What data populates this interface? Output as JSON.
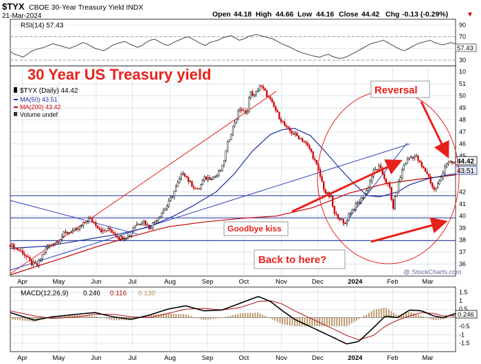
{
  "header": {
    "symbol": "$TYX",
    "description": "CBOE 30-Year Treasury Yield INDX",
    "date": "21-Mar-2024",
    "open_label": "Open",
    "open": "44.18",
    "high_label": "High",
    "high": "44.66",
    "low_label": "Low",
    "low": "44.16",
    "close_label": "Close",
    "close": "44.42",
    "chg_label": "Chg",
    "chg": "-0.13 (-0.29%)",
    "chg_arrow": "▼",
    "watermark": "@ StockCharts.com"
  },
  "colors": {
    "background": "#ffffff",
    "grid": "#c8d3e6",
    "price_up": "#000000",
    "price_down": "#cc0000",
    "ma50": "#1a2d9c",
    "ma200": "#cc0000",
    "annotation": "#e8201a",
    "trend_blue": "#3040c0"
  },
  "annotations": {
    "title": "30 Year US Treasury yield",
    "reversal": "Reversal",
    "goodbye": "Goodbye kiss",
    "back": "Back to here?"
  },
  "chart_data": [
    {
      "type": "line",
      "panel": "rsi",
      "title": "RSI(14) 57.43",
      "current_value_label": "57.43",
      "ylim": [
        20,
        100
      ],
      "ticks": [
        90,
        70,
        50,
        30,
        10
      ],
      "reference_lines": [
        70,
        30
      ],
      "values": [
        45,
        40,
        38,
        35,
        40,
        45,
        48,
        50,
        52,
        55,
        58,
        56,
        54,
        52,
        50,
        53,
        56,
        60,
        58,
        54,
        50,
        48,
        46,
        50,
        55,
        58,
        60,
        62,
        58,
        55,
        52,
        55,
        60,
        64,
        66,
        62,
        58,
        55,
        58,
        62,
        65,
        68,
        70,
        66,
        62,
        58,
        55,
        60,
        62,
        64,
        68,
        70,
        72,
        68,
        64,
        66,
        70,
        72,
        74,
        72,
        70,
        68,
        66,
        62,
        58,
        55,
        52,
        48,
        45,
        42,
        40,
        38,
        36,
        35,
        38,
        40,
        36,
        34,
        33,
        35,
        38,
        42,
        46,
        50,
        54,
        58,
        60,
        62,
        64,
        60,
        56,
        52,
        48,
        46,
        50,
        54,
        58,
        60,
        62,
        64,
        60,
        58,
        56,
        58,
        60,
        57.43
      ]
    },
    {
      "type": "line",
      "panel": "price",
      "legend": [
        "$TYX (Daily) 44.42",
        "MA(50) 43.51",
        "MA(200) 43.42",
        "Volume undef"
      ],
      "x_labels": [
        "Apr",
        "May",
        "Jun",
        "Jul",
        "Aug",
        "Sep",
        "Oct",
        "Nov",
        "Dec",
        "2024",
        "Feb",
        "Mar"
      ],
      "x_label_days": [
        0,
        30,
        61,
        91,
        122,
        153,
        183,
        214,
        244,
        275,
        306,
        335
      ],
      "ylim": [
        35,
        52.5
      ],
      "y_ticks": [
        36,
        37,
        38,
        39,
        40,
        41,
        42,
        43,
        44,
        45,
        46,
        47,
        48,
        49,
        50,
        51
      ],
      "last_close_label": "44.42",
      "ma50_label": "43.51",
      "series": [
        {
          "name": "$TYX (Daily)",
          "points": [
            [
              -10,
              37.6
            ],
            [
              0,
              37.0
            ],
            [
              8,
              36.0
            ],
            [
              12,
              35.9
            ],
            [
              20,
              37.4
            ],
            [
              28,
              37.8
            ],
            [
              35,
              38.6
            ],
            [
              45,
              38.8
            ],
            [
              55,
              39.8
            ],
            [
              60,
              39.4
            ],
            [
              66,
              38.7
            ],
            [
              72,
              38.9
            ],
            [
              80,
              38.2
            ],
            [
              88,
              38.3
            ],
            [
              92,
              39.2
            ],
            [
              100,
              39.6
            ],
            [
              105,
              39.0
            ],
            [
              112,
              39.9
            ],
            [
              120,
              40.9
            ],
            [
              128,
              42.6
            ],
            [
              133,
              43.7
            ],
            [
              138,
              42.8
            ],
            [
              145,
              42.1
            ],
            [
              150,
              43.1
            ],
            [
              160,
              43.3
            ],
            [
              165,
              44.0
            ],
            [
              170,
              46.2
            ],
            [
              175,
              47.7
            ],
            [
              180,
              49.0
            ],
            [
              185,
              48.4
            ],
            [
              188,
              50.3
            ],
            [
              192,
              50.0
            ],
            [
              196,
              50.9
            ],
            [
              200,
              50.4
            ],
            [
              205,
              49.6
            ],
            [
              212,
              48.3
            ],
            [
              218,
              47.3
            ],
            [
              225,
              46.8
            ],
            [
              232,
              46.3
            ],
            [
              238,
              45.5
            ],
            [
              244,
              44.0
            ],
            [
              250,
              42.0
            ],
            [
              255,
              41.5
            ],
            [
              258,
              40.1
            ],
            [
              262,
              39.9
            ],
            [
              266,
              39.2
            ],
            [
              270,
              40.2
            ],
            [
              275,
              40.8
            ],
            [
              280,
              41.4
            ],
            [
              285,
              42.2
            ],
            [
              290,
              43.7
            ],
            [
              295,
              44.1
            ],
            [
              300,
              43.0
            ],
            [
              304,
              42.2
            ],
            [
              306,
              40.5
            ],
            [
              310,
              42.4
            ],
            [
              315,
              44.2
            ],
            [
              320,
              44.9
            ],
            [
              325,
              45.0
            ],
            [
              330,
              44.1
            ],
            [
              335,
              43.5
            ],
            [
              340,
              42.1
            ],
            [
              345,
              42.9
            ],
            [
              350,
              44.4
            ],
            [
              355,
              44.4
            ],
            [
              358,
              44.42
            ]
          ]
        },
        {
          "name": "MA(50)",
          "points": [
            [
              -10,
              37.3
            ],
            [
              20,
              37.5
            ],
            [
              50,
              38.0
            ],
            [
              80,
              38.5
            ],
            [
              105,
              39.1
            ],
            [
              125,
              40.0
            ],
            [
              140,
              40.8
            ],
            [
              160,
              42.0
            ],
            [
              175,
              43.5
            ],
            [
              190,
              45.4
            ],
            [
              205,
              46.8
            ],
            [
              215,
              47.2
            ],
            [
              225,
              47.3
            ],
            [
              238,
              46.7
            ],
            [
              250,
              45.4
            ],
            [
              262,
              44.0
            ],
            [
              275,
              42.6
            ],
            [
              285,
              41.7
            ],
            [
              295,
              41.6
            ],
            [
              310,
              42.0
            ],
            [
              320,
              42.6
            ],
            [
              335,
              43.1
            ],
            [
              350,
              43.4
            ],
            [
              358,
              43.51
            ]
          ]
        },
        {
          "name": "MA(200)",
          "points": [
            [
              -10,
              35.1
            ],
            [
              30,
              36.4
            ],
            [
              60,
              37.4
            ],
            [
              90,
              38.3
            ],
            [
              120,
              39.1
            ],
            [
              150,
              39.5
            ],
            [
              180,
              39.8
            ],
            [
              210,
              40.0
            ],
            [
              240,
              40.7
            ],
            [
              270,
              41.9
            ],
            [
              300,
              42.7
            ],
            [
              330,
              43.1
            ],
            [
              358,
              43.42
            ]
          ]
        }
      ],
      "horizontal_lines": [
        41.7,
        39.85,
        37.95
      ],
      "trendlines": [
        {
          "name": "red long-term uptrend",
          "from": [
            -10,
            35.2
          ],
          "to": [
            210,
            50.4
          ]
        },
        {
          "name": "blue uptrend",
          "from": [
            -10,
            35.5
          ],
          "to": [
            320,
            46.0
          ]
        },
        {
          "name": "blue declining",
          "from": [
            -10,
            41.3
          ],
          "to": [
            95,
            38.5
          ]
        },
        {
          "name": "blue short-term uptrend",
          "from": [
            265,
            39.2
          ],
          "to": [
            318,
            46.1
          ]
        }
      ]
    },
    {
      "type": "line",
      "panel": "macd",
      "title": "MACD(12,26,9) 0.246, 0.116, 0.130",
      "macd_label": "MACD(12,26,9)",
      "macd_value": "0.246",
      "signal_value": "0.116",
      "hist_value": "0.130",
      "current_value_label": "0.246",
      "ylim": [
        -2.0,
        1.8
      ],
      "ticks": [
        1.5,
        1.0,
        0.5,
        0.0,
        -0.5,
        -1.0,
        -1.5
      ],
      "x_labels": [
        "Apr",
        "May",
        "Jun",
        "Jul",
        "Aug",
        "Sep",
        "Oct",
        "Nov",
        "Dec",
        "2024",
        "Feb",
        "Mar"
      ],
      "series": [
        {
          "name": "MACD",
          "points": [
            [
              -10,
              0.3
            ],
            [
              10,
              -0.15
            ],
            [
              25,
              0.05
            ],
            [
              45,
              0.2
            ],
            [
              60,
              0.3
            ],
            [
              75,
              0.05
            ],
            [
              90,
              -0.1
            ],
            [
              105,
              0.15
            ],
            [
              120,
              0.5
            ],
            [
              135,
              0.7
            ],
            [
              150,
              0.4
            ],
            [
              165,
              0.45
            ],
            [
              180,
              0.85
            ],
            [
              195,
              1.25
            ],
            [
              205,
              0.95
            ],
            [
              215,
              0.4
            ],
            [
              225,
              -0.1
            ],
            [
              240,
              -0.6
            ],
            [
              255,
              -1.1
            ],
            [
              268,
              -1.55
            ],
            [
              278,
              -1.4
            ],
            [
              290,
              -0.6
            ],
            [
              300,
              0.1
            ],
            [
              310,
              0.0
            ],
            [
              320,
              0.45
            ],
            [
              330,
              0.4
            ],
            [
              340,
              0.1
            ],
            [
              348,
              0.0
            ],
            [
              358,
              0.246
            ]
          ]
        },
        {
          "name": "Signal",
          "points": [
            [
              -10,
              0.4
            ],
            [
              10,
              0.1
            ],
            [
              25,
              -0.05
            ],
            [
              45,
              0.05
            ],
            [
              60,
              0.2
            ],
            [
              75,
              0.2
            ],
            [
              90,
              0.05
            ],
            [
              105,
              0.0
            ],
            [
              120,
              0.25
            ],
            [
              135,
              0.5
            ],
            [
              150,
              0.55
            ],
            [
              165,
              0.45
            ],
            [
              180,
              0.6
            ],
            [
              195,
              0.95
            ],
            [
              205,
              1.0
            ],
            [
              215,
              0.8
            ],
            [
              225,
              0.4
            ],
            [
              240,
              -0.1
            ],
            [
              255,
              -0.6
            ],
            [
              268,
              -1.05
            ],
            [
              278,
              -1.3
            ],
            [
              290,
              -1.05
            ],
            [
              300,
              -0.5
            ],
            [
              310,
              -0.15
            ],
            [
              320,
              0.1
            ],
            [
              330,
              0.3
            ],
            [
              340,
              0.25
            ],
            [
              348,
              0.1
            ],
            [
              358,
              0.116
            ]
          ]
        }
      ]
    }
  ]
}
